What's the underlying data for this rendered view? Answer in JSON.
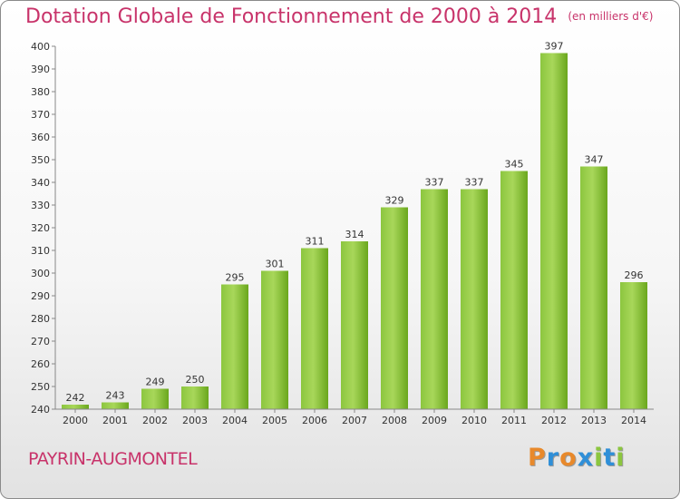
{
  "chart_data": {
    "type": "bar",
    "title": "Dotation Globale de Fonctionnement de 2000 à 2014",
    "subtitle": "(en milliers d'€)",
    "categories": [
      "2000",
      "2001",
      "2002",
      "2003",
      "2004",
      "2005",
      "2006",
      "2007",
      "2008",
      "2009",
      "2010",
      "2011",
      "2012",
      "2013",
      "2014"
    ],
    "values": [
      242,
      243,
      249,
      250,
      295,
      301,
      311,
      314,
      329,
      337,
      337,
      345,
      397,
      347,
      296
    ],
    "ylim": [
      240,
      400
    ],
    "yticks": [
      240,
      250,
      260,
      270,
      280,
      290,
      300,
      310,
      320,
      330,
      340,
      350,
      360,
      370,
      380,
      390,
      400
    ],
    "grid": false,
    "legend": "none",
    "xlabel": "",
    "ylabel": "",
    "bar_color": "#7cb527",
    "bar_color_dark": "#5f9a12",
    "bar_color_light": "#a8d75a"
  },
  "footer": {
    "commune": "PAYRIN-AUGMONTEL",
    "brand_letters": [
      "P",
      "r",
      "o",
      "x",
      "i",
      "t",
      "i"
    ],
    "brand_colors": [
      "#e8892b",
      "#2f8fd8",
      "#e8892b",
      "#2f8fd8",
      "#8cc63f",
      "#2f8fd8",
      "#8cc63f"
    ]
  },
  "colors": {
    "title": "#c8336a",
    "axis": "#333333"
  }
}
